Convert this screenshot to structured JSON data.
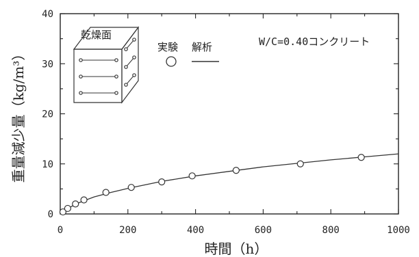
{
  "chart_data": {
    "type": "scatter",
    "title": "",
    "xlabel": "時間（h）",
    "ylabel": "重量減少量（kg/m³）",
    "xlim": [
      0,
      1000
    ],
    "ylim": [
      0,
      40
    ],
    "x_ticks": [
      "0",
      "200",
      "400",
      "600",
      "800",
      "1000"
    ],
    "y_ticks": [
      "0",
      "10",
      "20",
      "30",
      "40"
    ],
    "grid": false,
    "annotations": {
      "drying_surface": "乾燥面",
      "experiment": "実験",
      "analysis": "解析",
      "condition": "W/C=0.40コンクリート"
    },
    "series": [
      {
        "name": "実験",
        "marker": "circle",
        "x": [
          8,
          22,
          45,
          70,
          135,
          210,
          300,
          390,
          520,
          710,
          890
        ],
        "y": [
          0.4,
          1.1,
          2.0,
          2.8,
          4.3,
          5.3,
          6.4,
          7.6,
          8.7,
          10.0,
          11.3
        ]
      },
      {
        "name": "解析",
        "marker": "line",
        "x": [
          0,
          20,
          50,
          100,
          150,
          200,
          300,
          400,
          500,
          600,
          700,
          800,
          900,
          1000
        ],
        "y": [
          0,
          1.0,
          2.1,
          3.4,
          4.3,
          5.1,
          6.5,
          7.6,
          8.5,
          9.4,
          10.1,
          10.8,
          11.4,
          12.0
        ]
      }
    ]
  }
}
